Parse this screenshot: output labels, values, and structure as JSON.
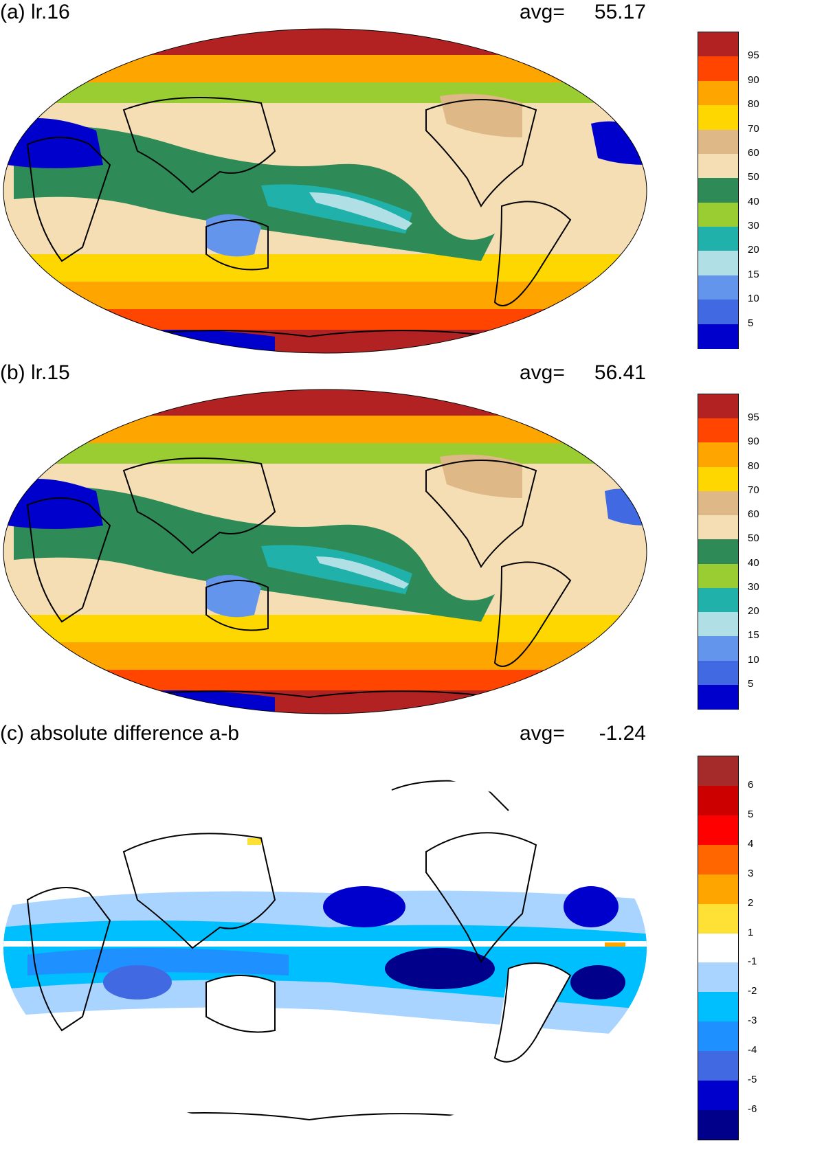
{
  "panels": [
    {
      "id": "a",
      "title": "(a) lr.16",
      "avg_label": "avg=",
      "avg_value": "55.17",
      "colorbar": {
        "labels": [
          "95",
          "90",
          "80",
          "70",
          "60",
          "50",
          "40",
          "30",
          "20",
          "15",
          "10",
          "5"
        ],
        "colors": [
          "#b22222",
          "#ff4500",
          "#ffa500",
          "#ffd700",
          "#deb887",
          "#f5deb3",
          "#2e8b57",
          "#9acd32",
          "#20b2aa",
          "#b0e0e6",
          "#6495ed",
          "#4169e1",
          "#0000cd"
        ]
      },
      "map_fill": "#f5deb3"
    },
    {
      "id": "b",
      "title": "(b) lr.15",
      "avg_label": "avg=",
      "avg_value": "56.41",
      "colorbar": {
        "labels": [
          "95",
          "90",
          "80",
          "70",
          "60",
          "50",
          "40",
          "30",
          "20",
          "15",
          "10",
          "5"
        ],
        "colors": [
          "#b22222",
          "#ff4500",
          "#ffa500",
          "#ffd700",
          "#deb887",
          "#f5deb3",
          "#2e8b57",
          "#9acd32",
          "#20b2aa",
          "#b0e0e6",
          "#6495ed",
          "#4169e1",
          "#0000cd"
        ]
      },
      "map_fill": "#f5deb3"
    },
    {
      "id": "c",
      "title": "(c) absolute difference a-b",
      "avg_label": "avg=",
      "avg_value": "-1.24",
      "colorbar": {
        "labels": [
          "6",
          "5",
          "4",
          "3",
          "2",
          "1",
          "-1",
          "-2",
          "-3",
          "-4",
          "-5",
          "-6"
        ],
        "colors": [
          "#a52a2a",
          "#cd0000",
          "#ff0000",
          "#ff6600",
          "#ffa500",
          "#ffe135",
          "#ffffff",
          "#a8d4ff",
          "#00bfff",
          "#1e90ff",
          "#4169e1",
          "#0000cd",
          "#00008b"
        ]
      },
      "map_fill": "#ffffff"
    }
  ]
}
